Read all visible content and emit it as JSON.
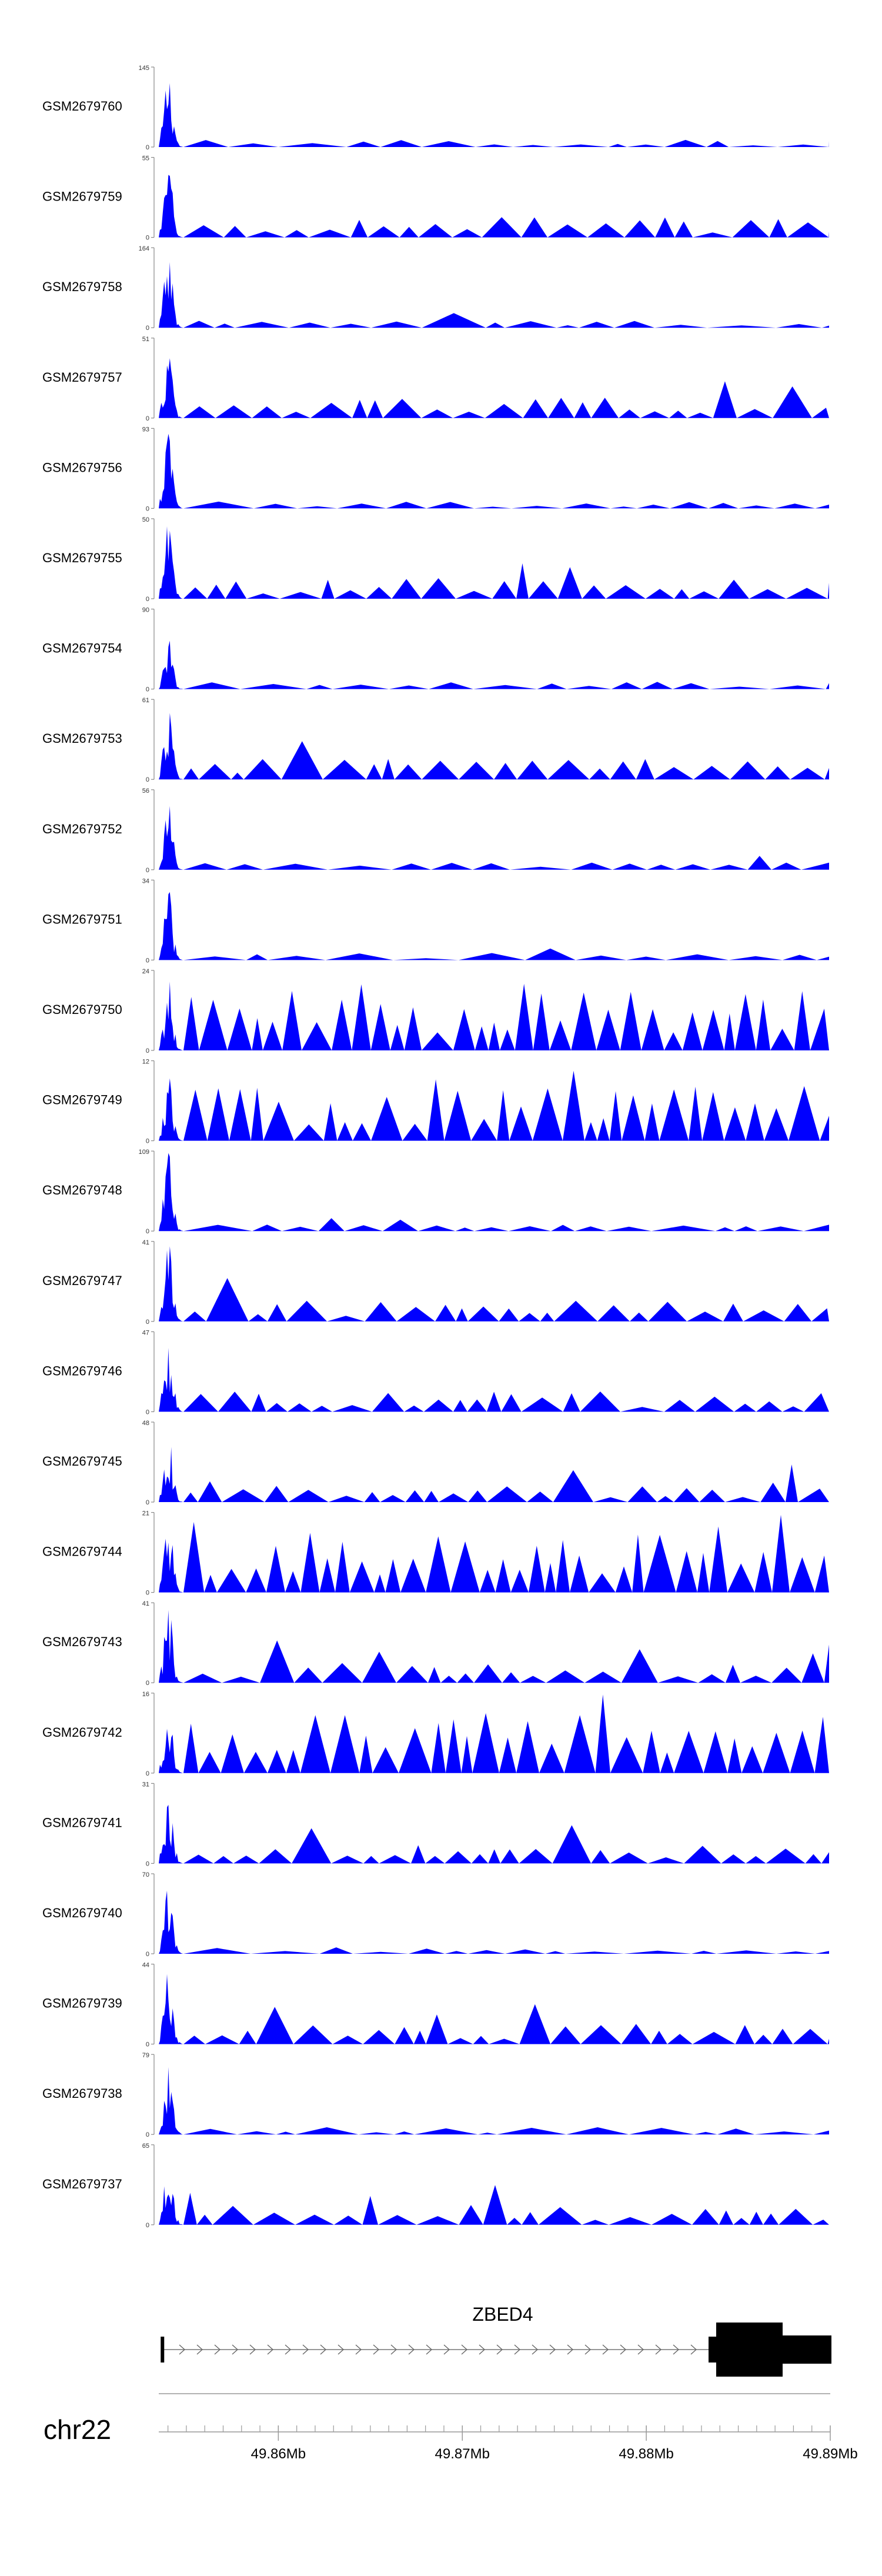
{
  "chart_data": {
    "type": "area",
    "x_range_mb": [
      49.8535,
      49.89
    ],
    "x_ticks": [
      49.86,
      49.87,
      49.88,
      49.89
    ],
    "x_tick_labels": [
      "49.86Mb",
      "49.87Mb",
      "49.88Mb",
      "49.89Mb"
    ],
    "chromosome": "chr22",
    "series_color": "#0000ff",
    "gene": {
      "name": "ZBED4",
      "strand": "+"
    },
    "tracks": [
      {
        "name": "GSM2679760",
        "ymax": 145,
        "ymax_label": "145",
        "peak": 1.0,
        "style": "sparse"
      },
      {
        "name": "GSM2679759",
        "ymax": 55,
        "ymax_label": "55",
        "peak": 0.95,
        "style": "medium"
      },
      {
        "name": "GSM2679758",
        "ymax": 164,
        "ymax_label": "164",
        "peak": 1.0,
        "style": "sparse"
      },
      {
        "name": "GSM2679757",
        "ymax": 51,
        "ymax_label": "51",
        "peak": 0.9,
        "style": "medium"
      },
      {
        "name": "GSM2679756",
        "ymax": 93,
        "ymax_label": "93",
        "peak": 1.0,
        "style": "sparse"
      },
      {
        "name": "GSM2679755",
        "ymax": 50,
        "ymax_label": "50",
        "peak": 1.0,
        "style": "medium"
      },
      {
        "name": "GSM2679754",
        "ymax": 90,
        "ymax_label": "90",
        "peak": 0.7,
        "style": "sparse"
      },
      {
        "name": "GSM2679753",
        "ymax": 61,
        "ymax_label": "61",
        "peak": 0.95,
        "style": "medium"
      },
      {
        "name": "GSM2679752",
        "ymax": 56,
        "ymax_label": "56",
        "peak": 0.9,
        "style": "sparse"
      },
      {
        "name": "GSM2679751",
        "ymax": 34,
        "ymax_label": "34",
        "peak": 0.95,
        "style": "sparse"
      },
      {
        "name": "GSM2679750",
        "ymax": 24,
        "ymax_label": "24",
        "peak": 0.95,
        "style": "dense"
      },
      {
        "name": "GSM2679749",
        "ymax": 12,
        "ymax_label": "12",
        "peak": 0.85,
        "style": "dense"
      },
      {
        "name": "GSM2679748",
        "ymax": 109,
        "ymax_label": "109",
        "peak": 1.0,
        "style": "sparse"
      },
      {
        "name": "GSM2679747",
        "ymax": 41,
        "ymax_label": "41",
        "peak": 1.0,
        "style": "medium"
      },
      {
        "name": "GSM2679746",
        "ymax": 47,
        "ymax_label": "47",
        "peak": 1.0,
        "style": "medium"
      },
      {
        "name": "GSM2679745",
        "ymax": 48,
        "ymax_label": "48",
        "peak": 0.9,
        "style": "medium"
      },
      {
        "name": "GSM2679744",
        "ymax": 21,
        "ymax_label": "21",
        "peak": 1.0,
        "style": "dense"
      },
      {
        "name": "GSM2679743",
        "ymax": 41,
        "ymax_label": "41",
        "peak": 1.0,
        "style": "medium"
      },
      {
        "name": "GSM2679742",
        "ymax": 16,
        "ymax_label": "16",
        "peak": 0.9,
        "style": "dense"
      },
      {
        "name": "GSM2679741",
        "ymax": 31,
        "ymax_label": "31",
        "peak": 1.0,
        "style": "medium"
      },
      {
        "name": "GSM2679740",
        "ymax": 70,
        "ymax_label": "70",
        "peak": 1.0,
        "style": "sparse"
      },
      {
        "name": "GSM2679739",
        "ymax": 44,
        "ymax_label": "44",
        "peak": 1.0,
        "style": "medium"
      },
      {
        "name": "GSM2679738",
        "ymax": 79,
        "ymax_label": "79",
        "peak": 1.0,
        "style": "sparse"
      },
      {
        "name": "GSM2679737",
        "ymax": 65,
        "ymax_label": "65",
        "peak": 1.0,
        "style": "medium"
      }
    ]
  }
}
